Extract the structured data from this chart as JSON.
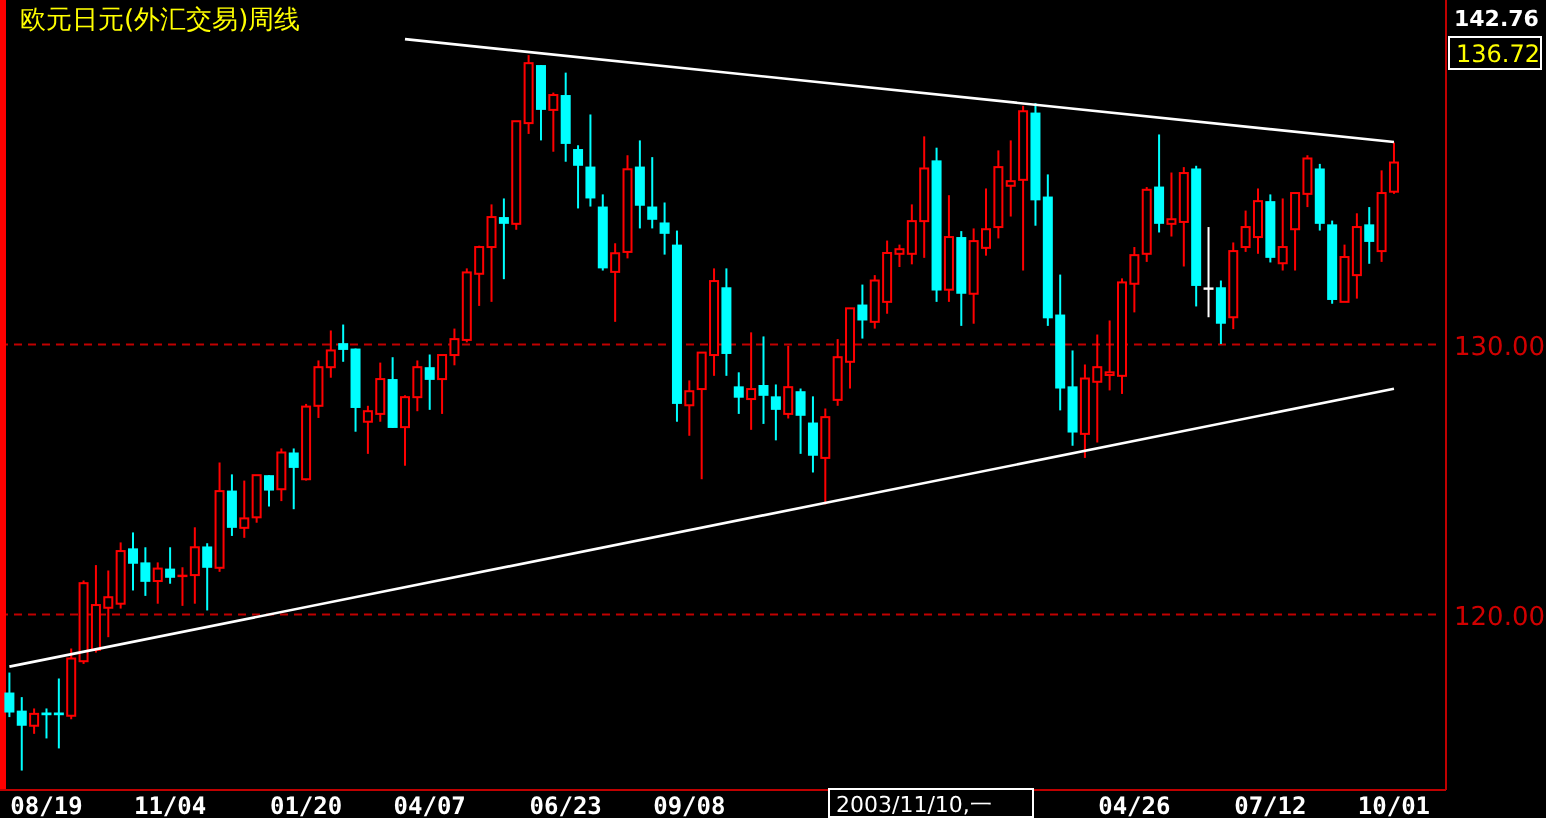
{
  "chart_data": {
    "type": "candlestick",
    "title": "欧元日元(外汇交易)周线",
    "categories": [
      null,
      null,
      null,
      "08/19",
      null,
      null,
      null,
      null,
      null,
      null,
      null,
      null,
      null,
      "11/04",
      null,
      null,
      null,
      null,
      null,
      null,
      null,
      null,
      null,
      null,
      "01/20",
      null,
      null,
      null,
      null,
      null,
      null,
      null,
      null,
      null,
      "04/07",
      null,
      null,
      null,
      null,
      null,
      null,
      null,
      null,
      null,
      null,
      "06/23",
      null,
      null,
      null,
      null,
      null,
      null,
      null,
      null,
      null,
      "09/08",
      null,
      null,
      null,
      null,
      null,
      null,
      null,
      null,
      null,
      null,
      null,
      null,
      null,
      null,
      null,
      null,
      null,
      null,
      null,
      null,
      null,
      null,
      null,
      null,
      null,
      null,
      null,
      null,
      null,
      null,
      null,
      null,
      null,
      null,
      null,
      "04/26",
      null,
      null,
      null,
      null,
      null,
      null,
      null,
      null,
      null,
      null,
      "07/12",
      null,
      null,
      null,
      null,
      null,
      null,
      null,
      null,
      null,
      "10/01"
    ],
    "ohlc": [
      [
        117.11,
        117.85,
        116.2,
        116.37
      ],
      [
        116.44,
        116.94,
        114.22,
        115.88
      ],
      [
        115.88,
        116.52,
        115.58,
        116.32
      ],
      [
        116.37,
        116.52,
        115.41,
        116.27
      ],
      [
        116.37,
        117.63,
        115.04,
        116.27
      ],
      [
        116.25,
        118.74,
        116.12,
        118.37
      ],
      [
        118.27,
        121.26,
        118.17,
        121.16
      ],
      [
        118.69,
        121.83,
        118.59,
        120.35
      ],
      [
        120.25,
        121.63,
        119.16,
        120.64
      ],
      [
        120.4,
        122.67,
        120.22,
        122.35
      ],
      [
        122.45,
        123.04,
        120.89,
        121.88
      ],
      [
        121.93,
        122.49,
        120.69,
        121.21
      ],
      [
        121.24,
        121.93,
        120.4,
        121.7
      ],
      [
        121.7,
        122.49,
        121.14,
        121.36
      ],
      [
        121.38,
        121.75,
        120.32,
        121.43
      ],
      [
        121.46,
        123.23,
        120.4,
        122.49
      ],
      [
        122.52,
        122.64,
        120.15,
        121.73
      ],
      [
        121.73,
        125.63,
        121.58,
        124.57
      ],
      [
        124.59,
        125.19,
        122.91,
        123.21
      ],
      [
        123.21,
        124.96,
        122.84,
        123.56
      ],
      [
        123.6,
        125.16,
        123.4,
        125.16
      ],
      [
        125.16,
        125.16,
        124.0,
        124.59
      ],
      [
        124.64,
        126.15,
        124.2,
        126.0
      ],
      [
        126.0,
        126.15,
        123.9,
        125.43
      ],
      [
        125.01,
        127.8,
        124.96,
        127.7
      ],
      [
        127.73,
        129.41,
        127.28,
        129.16
      ],
      [
        129.16,
        130.52,
        128.77,
        129.78
      ],
      [
        130.05,
        130.74,
        129.36,
        129.8
      ],
      [
        129.85,
        129.85,
        126.77,
        127.65
      ],
      [
        127.14,
        127.73,
        125.95,
        127.53
      ],
      [
        127.43,
        129.33,
        127.14,
        128.72
      ],
      [
        128.72,
        129.53,
        126.91,
        126.91
      ],
      [
        126.94,
        128.12,
        125.51,
        128.05
      ],
      [
        128.05,
        129.41,
        127.53,
        129.16
      ],
      [
        129.16,
        129.63,
        127.58,
        128.69
      ],
      [
        128.72,
        129.61,
        127.43,
        129.61
      ],
      [
        129.61,
        130.59,
        129.23,
        130.2
      ],
      [
        130.17,
        132.82,
        130.08,
        132.67
      ],
      [
        132.62,
        133.66,
        131.43,
        133.61
      ],
      [
        133.61,
        135.19,
        131.58,
        134.72
      ],
      [
        134.72,
        135.41,
        132.42,
        134.47
      ],
      [
        134.47,
        138.27,
        134.25,
        138.27
      ],
      [
        138.2,
        140.72,
        137.8,
        140.42
      ],
      [
        140.35,
        140.35,
        137.56,
        138.69
      ],
      [
        138.69,
        139.33,
        137.14,
        139.24
      ],
      [
        139.24,
        140.07,
        136.77,
        137.43
      ],
      [
        137.24,
        137.38,
        135.04,
        136.62
      ],
      [
        136.59,
        138.52,
        135.11,
        135.41
      ],
      [
        135.11,
        135.56,
        132.74,
        132.82
      ],
      [
        132.69,
        133.75,
        130.84,
        133.38
      ],
      [
        133.43,
        137.01,
        133.19,
        136.49
      ],
      [
        136.59,
        137.56,
        134.3,
        135.14
      ],
      [
        135.11,
        136.94,
        134.3,
        134.62
      ],
      [
        134.52,
        135.26,
        133.33,
        134.1
      ],
      [
        133.7,
        134.22,
        127.14,
        127.8
      ],
      [
        127.75,
        128.67,
        126.62,
        128.27
      ],
      [
        128.35,
        129.7,
        125.01,
        129.7
      ],
      [
        129.61,
        132.82,
        128.84,
        132.35
      ],
      [
        132.12,
        132.82,
        128.84,
        129.65
      ],
      [
        128.45,
        128.97,
        127.43,
        128.03
      ],
      [
        127.98,
        130.45,
        126.84,
        128.35
      ],
      [
        128.5,
        130.3,
        127.06,
        128.1
      ],
      [
        128.08,
        128.52,
        126.45,
        127.58
      ],
      [
        127.43,
        129.95,
        127.26,
        128.42
      ],
      [
        128.27,
        128.37,
        125.95,
        127.36
      ],
      [
        127.11,
        128.08,
        125.26,
        125.88
      ],
      [
        125.8,
        127.63,
        124.08,
        127.31
      ],
      [
        127.95,
        130.2,
        127.73,
        129.53
      ],
      [
        129.36,
        131.34,
        128.37,
        131.34
      ],
      [
        131.48,
        132.22,
        130.22,
        130.89
      ],
      [
        130.84,
        132.57,
        130.59,
        132.37
      ],
      [
        131.58,
        133.85,
        131.14,
        133.39
      ],
      [
        133.36,
        133.7,
        132.87,
        133.53
      ],
      [
        133.36,
        135.19,
        132.97,
        134.57
      ],
      [
        134.57,
        137.71,
        133.21,
        136.52
      ],
      [
        136.82,
        137.29,
        131.58,
        132.0
      ],
      [
        132.03,
        135.53,
        131.58,
        133.98
      ],
      [
        133.98,
        134.2,
        130.69,
        131.88
      ],
      [
        131.88,
        134.3,
        130.77,
        133.83
      ],
      [
        133.58,
        135.78,
        133.29,
        134.27
      ],
      [
        134.35,
        137.19,
        133.93,
        136.57
      ],
      [
        135.88,
        137.56,
        134.74,
        136.05
      ],
      [
        136.1,
        138.84,
        132.74,
        138.64
      ],
      [
        138.59,
        138.94,
        134.4,
        135.34
      ],
      [
        135.48,
        136.3,
        130.69,
        130.97
      ],
      [
        131.11,
        132.59,
        127.56,
        128.37
      ],
      [
        128.45,
        129.78,
        126.25,
        126.74
      ],
      [
        126.69,
        129.26,
        125.8,
        128.74
      ],
      [
        128.62,
        130.37,
        126.37,
        129.16
      ],
      [
        128.87,
        130.89,
        128.3,
        128.97
      ],
      [
        128.84,
        132.45,
        128.17,
        132.3
      ],
      [
        132.25,
        133.61,
        131.19,
        133.31
      ],
      [
        133.36,
        135.83,
        133.06,
        135.73
      ],
      [
        135.85,
        137.78,
        134.15,
        134.47
      ],
      [
        134.47,
        136.37,
        134.0,
        134.64
      ],
      [
        134.54,
        136.57,
        132.89,
        136.35
      ],
      [
        136.52,
        136.62,
        131.41,
        132.17
      ],
      [
        132.07,
        134.35,
        131.01,
        132.07
      ],
      [
        132.12,
        132.37,
        130.02,
        130.77
      ],
      [
        131.01,
        133.78,
        130.57,
        133.46
      ],
      [
        133.61,
        134.96,
        133.43,
        134.35
      ],
      [
        133.98,
        135.78,
        133.36,
        135.31
      ],
      [
        135.31,
        135.56,
        133.04,
        133.21
      ],
      [
        133.01,
        135.41,
        132.74,
        133.61
      ],
      [
        134.27,
        135.61,
        132.74,
        135.61
      ],
      [
        135.58,
        137.01,
        135.09,
        136.89
      ],
      [
        136.52,
        136.69,
        134.22,
        134.47
      ],
      [
        134.45,
        134.59,
        131.51,
        131.65
      ],
      [
        131.58,
        133.7,
        131.58,
        133.24
      ],
      [
        132.57,
        134.86,
        131.7,
        134.35
      ],
      [
        134.45,
        135.09,
        132.99,
        133.8
      ],
      [
        133.46,
        136.45,
        133.06,
        135.61
      ],
      [
        135.66,
        137.48,
        135.58,
        136.74
      ]
    ],
    "colors": [
      "#00ffff",
      "#00ffff",
      "#ff0000",
      "#00ffff",
      "#00ffff",
      "#ff0000",
      "#ff0000",
      "#ff0000",
      "#ff0000",
      "#ff0000",
      "#00ffff",
      "#00ffff",
      "#ff0000",
      "#00ffff",
      "#ff0000",
      "#ff0000",
      "#00ffff",
      "#ff0000",
      "#00ffff",
      "#ff0000",
      "#ff0000",
      "#00ffff",
      "#ff0000",
      "#00ffff",
      "#ff0000",
      "#ff0000",
      "#ff0000",
      "#00ffff",
      "#00ffff",
      "#ff0000",
      "#ff0000",
      "#00ffff",
      "#ff0000",
      "#ff0000",
      "#00ffff",
      "#ff0000",
      "#ff0000",
      "#ff0000",
      "#ff0000",
      "#ff0000",
      "#00ffff",
      "#ff0000",
      "#ff0000",
      "#00ffff",
      "#ff0000",
      "#00ffff",
      "#00ffff",
      "#00ffff",
      "#00ffff",
      "#ff0000",
      "#ff0000",
      "#00ffff",
      "#00ffff",
      "#00ffff",
      "#00ffff",
      "#ff0000",
      "#ff0000",
      "#ff0000",
      "#00ffff",
      "#00ffff",
      "#ff0000",
      "#00ffff",
      "#00ffff",
      "#ff0000",
      "#00ffff",
      "#00ffff",
      "#ff0000",
      "#ff0000",
      "#ff0000",
      "#00ffff",
      "#ff0000",
      "#ff0000",
      "#ff0000",
      "#ff0000",
      "#ff0000",
      "#00ffff",
      "#ff0000",
      "#00ffff",
      "#ff0000",
      "#ff0000",
      "#ff0000",
      "#ff0000",
      "#ff0000",
      "#00ffff",
      "#00ffff",
      "#00ffff",
      "#00ffff",
      "#ff0000",
      "#ff0000",
      "#ff0000",
      "#ff0000",
      "#ff0000",
      "#ff0000",
      "#00ffff",
      "#ff0000",
      "#ff0000",
      "#00ffff",
      "#ffffff",
      "#00ffff",
      "#ff0000",
      "#ff0000",
      "#ff0000",
      "#00ffff",
      "#ff0000",
      "#ff0000",
      "#ff0000",
      "#00ffff",
      "#00ffff",
      "#ff0000",
      "#ff0000",
      "#00ffff",
      "#ff0000",
      "#ff0000"
    ],
    "series": [
      {
        "type": "line",
        "values": [
          null,
          null,
          null,
          null,
          null,
          null,
          null,
          null,
          null,
          null,
          null,
          null,
          null,
          null,
          null,
          null,
          null,
          null,
          null,
          null,
          null,
          null,
          null,
          null,
          null,
          null,
          null,
          null,
          null,
          null,
          null,
          null,
          141.31,
          null,
          null,
          null,
          null,
          null,
          null,
          null,
          null,
          null,
          null,
          null,
          null,
          null,
          null,
          null,
          null,
          null,
          null,
          null,
          null,
          null,
          null,
          null,
          null,
          null,
          null,
          null,
          null,
          null,
          null,
          null,
          null,
          null,
          null,
          null,
          null,
          null,
          null,
          null,
          null,
          null,
          null,
          null,
          null,
          null,
          null,
          null,
          null,
          null,
          null,
          null,
          null,
          null,
          null,
          null,
          null,
          null,
          null,
          null,
          null,
          null,
          null,
          null,
          null,
          null,
          null,
          null,
          null,
          null,
          null,
          null,
          null,
          null,
          null,
          null,
          null,
          null,
          null,
          null,
          137.5
        ],
        "color": "#ffffff"
      },
      {
        "type": "line",
        "values": [
          118.07,
          null,
          null,
          null,
          null,
          null,
          null,
          null,
          null,
          null,
          null,
          null,
          null,
          null,
          null,
          null,
          null,
          null,
          null,
          null,
          null,
          null,
          null,
          null,
          null,
          null,
          null,
          null,
          null,
          null,
          null,
          null,
          null,
          null,
          null,
          null,
          null,
          null,
          null,
          null,
          null,
          null,
          null,
          null,
          null,
          null,
          null,
          null,
          null,
          null,
          null,
          null,
          null,
          null,
          null,
          null,
          null,
          null,
          null,
          null,
          null,
          null,
          null,
          null,
          null,
          null,
          null,
          null,
          null,
          null,
          null,
          null,
          null,
          null,
          null,
          null,
          null,
          null,
          null,
          null,
          null,
          null,
          null,
          null,
          null,
          null,
          null,
          null,
          null,
          null,
          null,
          null,
          null,
          null,
          null,
          null,
          null,
          null,
          null,
          null,
          null,
          null,
          null,
          null,
          null,
          null,
          null,
          null,
          null,
          null,
          null,
          null,
          128.36
        ],
        "color": "#ffffff"
      }
    ],
    "ylim": [
      113.5,
      142.76
    ],
    "yticks": [
      {
        "value": 120,
        "label": "120.00"
      },
      {
        "value": 130,
        "label": "130.00"
      },
      142.76
    ],
    "grid": "y",
    "annotations": [
      "2003/11/10,一",
      "136.72"
    ]
  }
}
